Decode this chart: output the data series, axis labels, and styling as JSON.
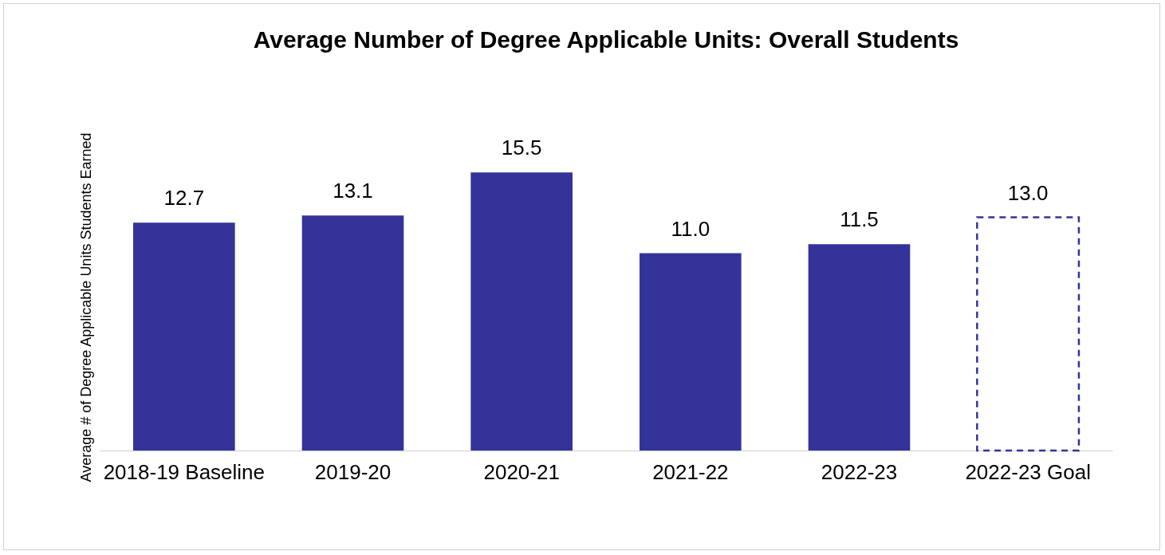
{
  "chart_data": {
    "type": "bar",
    "title": "Average Number of Degree Applicable Units: Overall Students",
    "ylabel": "Average # of Degree Applicable Units Students Earned",
    "categories": [
      "2018-19 Baseline",
      "2019-20",
      "2020-21",
      "2021-22",
      "2022-23",
      "2022-23 Goal"
    ],
    "series": [
      {
        "color": "#333399",
        "values": [
          12.7,
          13.1,
          15.5,
          11.0,
          11.5,
          null
        ],
        "value_labels": [
          "12.7",
          "13.1",
          "15.5",
          "11.0",
          "11.5",
          null
        ]
      },
      {
        "color": "#333399",
        "line_style": "dashed",
        "values": [
          null,
          null,
          null,
          null,
          null,
          13.0
        ],
        "value_labels": [
          null,
          null,
          null,
          null,
          null,
          "13.0"
        ]
      }
    ],
    "grid": false
  }
}
